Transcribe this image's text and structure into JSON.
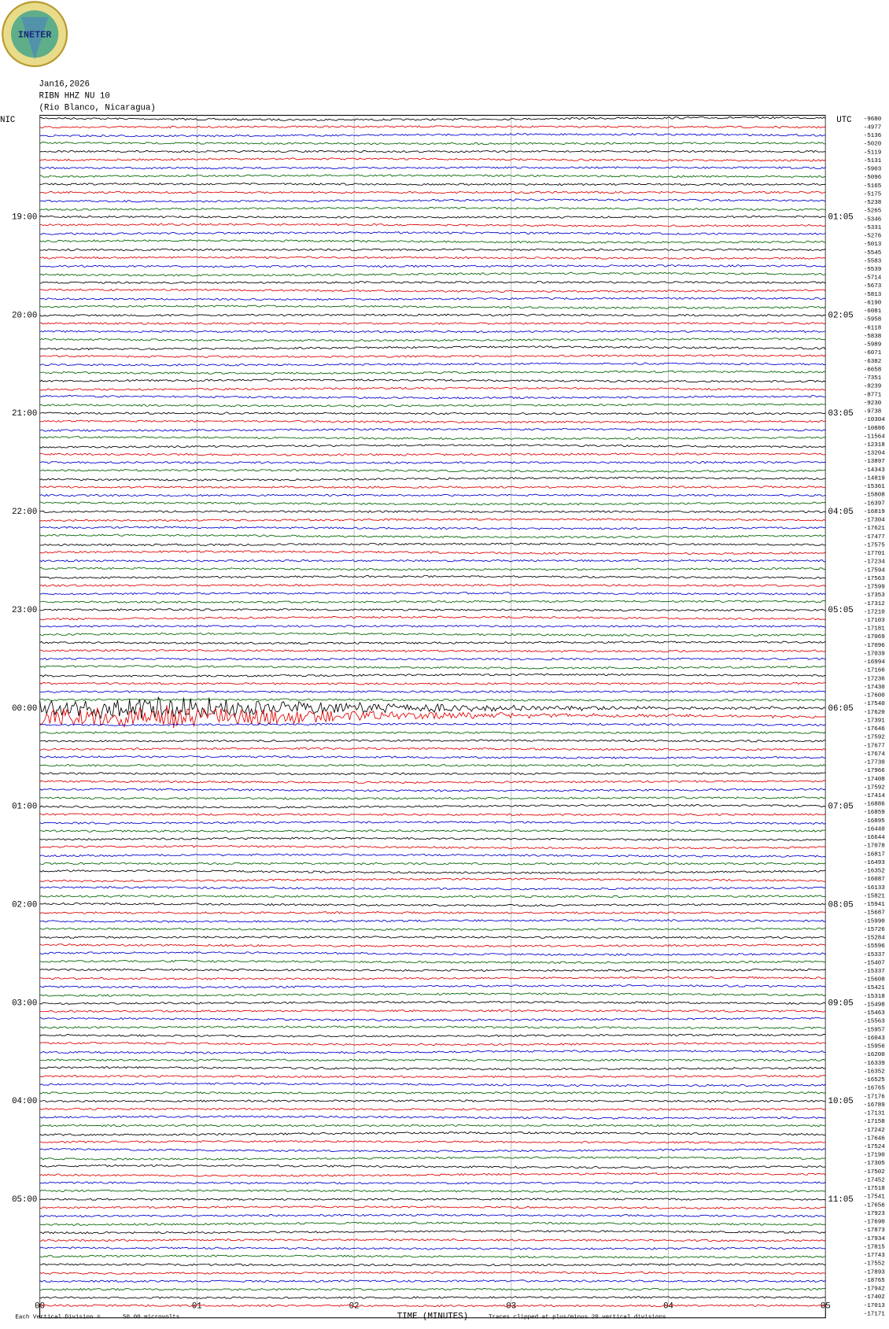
{
  "header": {
    "logo": "INETER",
    "date": "Jan16,2026",
    "station": "RIBN HHZ NU 10",
    "location": "(Rio Blanco, Nicaragua)",
    "left_zone": "NIC",
    "right_zone": "UTC"
  },
  "left_times": [
    "19:00",
    "20:00",
    "21:00",
    "22:00",
    "23:00",
    "00:00",
    "01:00",
    "02:00",
    "03:00",
    "04:00",
    "05:00"
  ],
  "right_times": [
    "01:05",
    "02:05",
    "03:05",
    "04:05",
    "05:05",
    "06:05",
    "07:05",
    "08:05",
    "09:05",
    "10:05",
    "11:05"
  ],
  "trace_offsets": [
    -9680,
    -4977,
    -5136,
    -5020,
    -5119,
    -5131,
    -5903,
    -5096,
    -5165,
    -5175,
    -5238,
    -5265,
    -5346,
    -5331,
    -5276,
    -5013,
    -5545,
    -5583,
    -5539,
    -5714,
    -5673,
    -5813,
    -6190,
    -6081,
    -5958,
    -6118,
    -5838,
    -5989,
    -6071,
    -6382,
    -6658,
    -7351,
    -8239,
    -8771,
    -9230,
    -9738,
    -10304,
    -10886,
    -11564,
    -12318,
    -13204,
    -13897,
    -14343,
    -14819,
    -15361,
    -15808,
    -16397,
    -16819,
    -17304,
    -17621,
    -17477,
    -17575,
    -17701,
    -17234,
    -17594,
    -17563,
    -17599,
    -17353,
    -17312,
    -17210,
    -17103,
    -17181,
    -17069,
    -17096,
    -17039,
    -16994,
    -17166,
    -17236,
    -17430,
    -17600,
    -17540,
    -17620,
    -17391,
    -17646,
    -17592,
    -17677,
    -17674,
    -17730,
    -17966,
    -17408,
    -17592,
    -17414,
    -16886,
    -16859,
    -16895,
    -16440,
    -16644,
    -17078,
    -16817,
    -16493,
    -16352,
    -16087,
    -16133,
    -15821,
    -15941,
    -15687,
    -15990,
    -15726,
    -15284,
    -15596,
    -15337,
    -15407,
    -15337,
    -15608,
    -15421,
    -15318,
    -15498,
    -15463,
    -15563,
    -15957,
    -16043,
    -15956,
    -16200,
    -16339,
    -16352,
    -16525,
    -16765,
    -17176,
    -16789,
    -17131,
    -17158,
    -17242,
    -17646,
    -17524,
    -17190,
    -17305,
    -17502,
    -17452,
    -17518,
    -17541,
    -17656,
    -17923,
    -17690,
    -17873,
    -17934,
    -17815,
    -17743,
    -17552,
    -17893,
    -18765,
    -17942,
    -17402,
    -17013,
    -17171
  ],
  "xaxis": {
    "label": "TIME (MINUTES)",
    "xlim": [
      0,
      5
    ],
    "xticks": [
      {
        "value": 0,
        "label": "00"
      },
      {
        "value": 1,
        "label": "01"
      },
      {
        "value": 2,
        "label": "02"
      },
      {
        "value": 3,
        "label": "03"
      },
      {
        "value": 4,
        "label": "04"
      },
      {
        "value": 5,
        "label": "05"
      }
    ]
  },
  "footer": {
    "division": "Each Vertical Division =",
    "scale": "50.00 microvolts",
    "clip": "Traces clipped at plus/minus 20 vertical divisions"
  }
}
